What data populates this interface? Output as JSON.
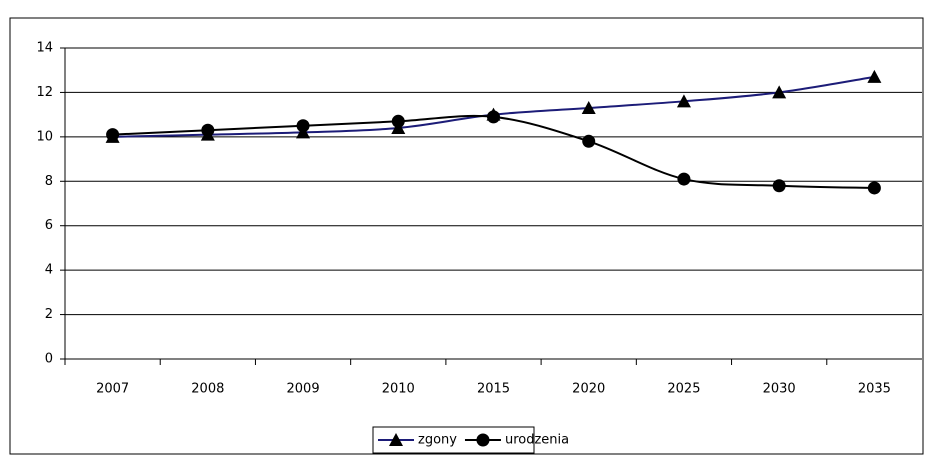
{
  "chart_data": {
    "type": "line",
    "categories": [
      "2007",
      "2008",
      "2009",
      "2010",
      "2015",
      "2020",
      "2025",
      "2030",
      "2035"
    ],
    "series": [
      {
        "name": "zgony",
        "color": "#1c1c78",
        "marker": "triangle",
        "marker_color": "#000000",
        "values": [
          10.0,
          10.1,
          10.2,
          10.4,
          11.0,
          11.3,
          11.6,
          12.0,
          12.7
        ]
      },
      {
        "name": "urodzenia",
        "color": "#000000",
        "marker": "circle",
        "marker_color": "#000000",
        "values": [
          10.1,
          10.3,
          10.5,
          10.7,
          10.9,
          9.8,
          8.1,
          7.8,
          7.7
        ]
      }
    ],
    "ylim": [
      0,
      14
    ],
    "yticks": [
      0,
      2,
      4,
      6,
      8,
      10,
      12,
      14
    ],
    "grid": true,
    "legend": "bottom"
  }
}
